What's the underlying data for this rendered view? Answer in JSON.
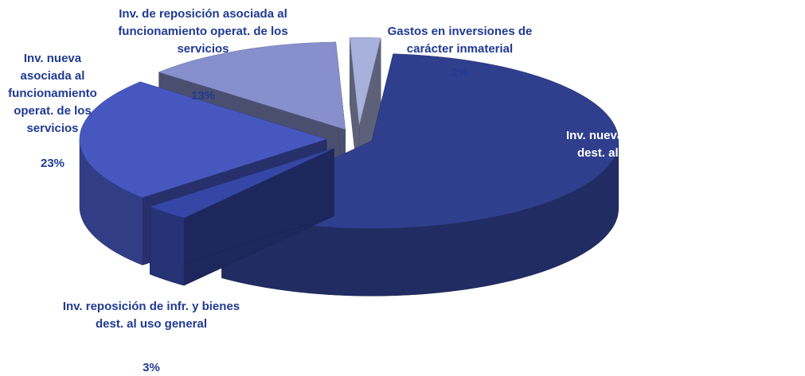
{
  "chart_data": {
    "type": "pie3d",
    "categories": [
      "Inv. nueva infr. y bienes dest. al uso general",
      "Inv. reposición de infr. y bienes dest. al uso general",
      "Inv. nueva asociada al funcionamiento operat. de los servicios",
      "Inv. de reposición asociada al funcionamiento operat. de los servicios",
      "Gastos en inversiones de carácter inmaterial"
    ],
    "values": [
      59,
      3,
      23,
      13,
      2
    ],
    "value_labels": [
      "59%",
      "3%",
      "23%",
      "13%",
      "2%"
    ],
    "colors": [
      "#2f3f8e",
      "#3547a6",
      "#4658c0",
      "#8790cc",
      "#a8b0dc"
    ]
  }
}
